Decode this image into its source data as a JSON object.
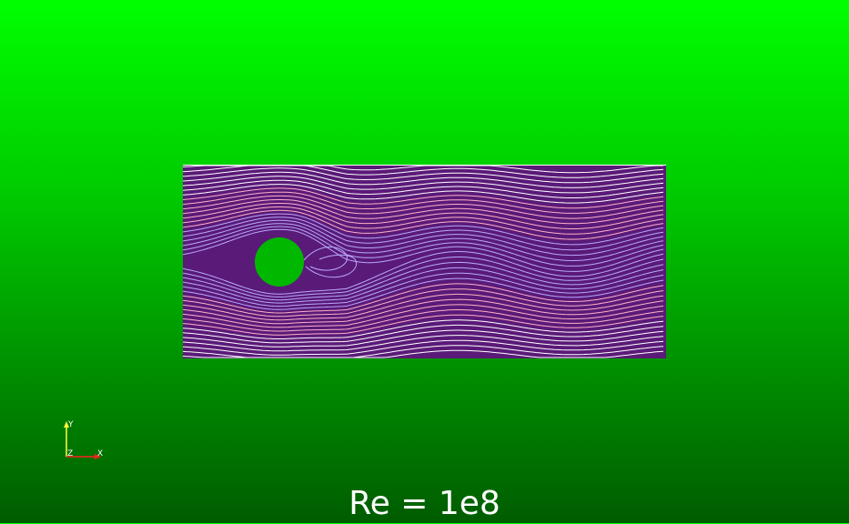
{
  "scene": {
    "background_top": "#00ff00",
    "background_bottom": "#005c00",
    "domain_color": "#5a1a78",
    "streamline_light": "#ffffff",
    "streamline_warm": "#ffb0c8",
    "streamline_cool": "#b8a8ff",
    "obstacle_color": "#00b800"
  },
  "axes": {
    "y_label": "Y",
    "z_label": "Z",
    "x_label": "X",
    "x_color": "#ff2020",
    "y_color": "#ffff40"
  },
  "caption": "Re = 1e8"
}
